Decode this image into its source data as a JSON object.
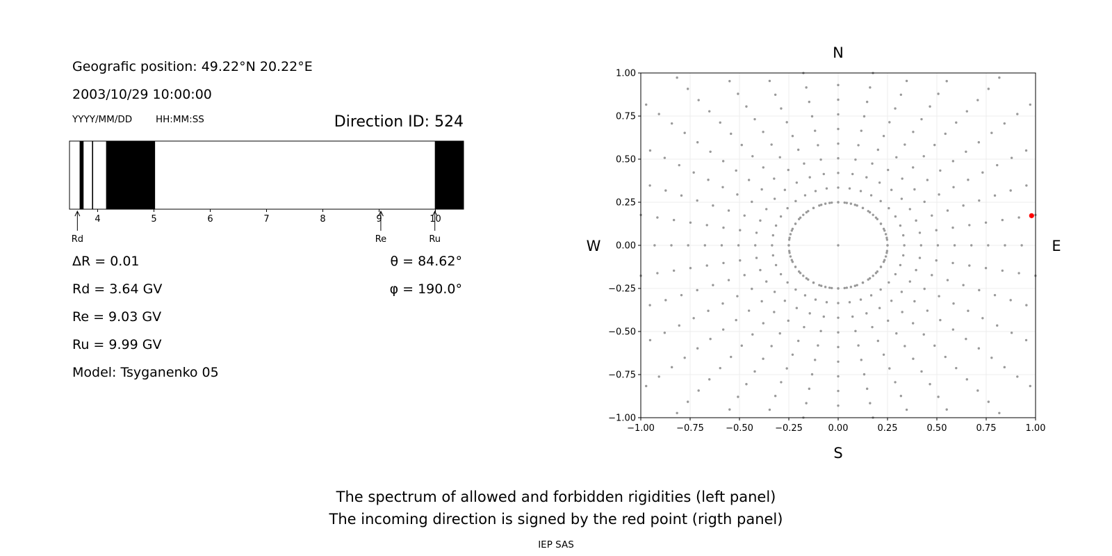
{
  "left_panel": {
    "position_text": "Geografic position: 49.22°N 20.22°E",
    "datetime_text": "2003/10/29 10:00:00",
    "date_format_label": "YYYY/MM/DD",
    "time_format_label": "HH:MM:SS",
    "direction_id_text": "Direction ID: 524",
    "delta_r_text": "ΔR = 0.01",
    "rd_text": "Rd = 3.64 GV",
    "re_text": "Re = 9.03 GV",
    "ru_text": "Ru = 9.99 GV",
    "model_text": "Model: Tsyganenko 05",
    "theta_text": "θ = 84.62°",
    "phi_text": "φ = 190.0°"
  },
  "chart_data": [
    {
      "type": "bar",
      "subtype": "rigidity-spectrum",
      "x_range": [
        3.5,
        10.5
      ],
      "ticks": [
        4,
        5,
        6,
        7,
        8,
        9,
        10
      ],
      "forbidden_bands": [
        [
          3.68,
          3.75
        ],
        [
          3.9,
          3.92
        ],
        [
          4.15,
          5.02
        ],
        [
          9.99,
          10.5
        ]
      ],
      "markers": [
        {
          "label": "Rd",
          "value": 3.64
        },
        {
          "label": "Re",
          "value": 9.03
        },
        {
          "label": "Ru",
          "value": 9.99
        }
      ],
      "colors": {
        "forbidden": "#000000",
        "allowed": "#ffffff"
      }
    },
    {
      "type": "scatter",
      "subtype": "direction-map",
      "xlim": [
        -1.0,
        1.0
      ],
      "ylim": [
        -1.0,
        1.0
      ],
      "ticks": [
        -1.0,
        -0.75,
        -0.5,
        -0.25,
        0.0,
        0.25,
        0.5,
        0.75,
        1.0
      ],
      "tick_labels": [
        "−1.00",
        "−0.75",
        "−0.50",
        "−0.25",
        "0.00",
        "0.25",
        "0.50",
        "0.75",
        "1.00"
      ],
      "compass": {
        "north": "N",
        "south": "S",
        "west": "W",
        "east": "E"
      },
      "grid": true,
      "grid_description": "radial rays every 10° from r=0.25; rings every 0.085 of r, clipped to the square",
      "direction_point": {
        "x": 0.98,
        "y": 0.172
      },
      "colors": {
        "grid_points": "#999999",
        "direction_point": "#ff0000"
      }
    }
  ],
  "footer": {
    "line1": "The spectrum of allowed and forbidden rigidities (left panel)",
    "line2": "The incoming direction is signed by the red point (rigth panel)",
    "credit": "IEP SAS"
  }
}
